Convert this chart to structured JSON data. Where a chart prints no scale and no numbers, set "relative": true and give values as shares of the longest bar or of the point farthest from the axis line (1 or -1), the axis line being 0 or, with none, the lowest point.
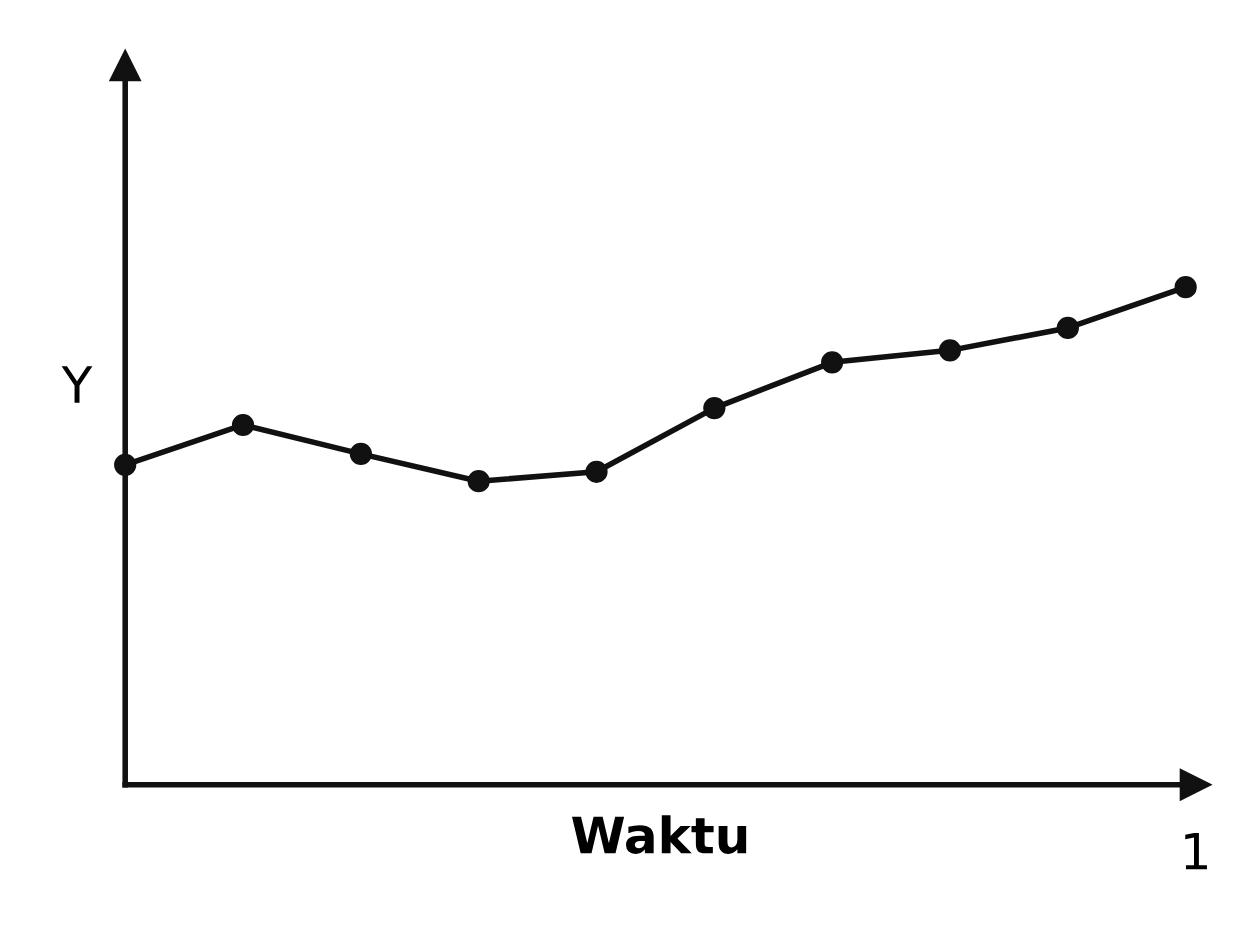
{
  "chart_data": {
    "type": "line",
    "relative": true,
    "xlabel": "Waktu",
    "ylabel": "Y",
    "categories": [
      null,
      null,
      null,
      null,
      null,
      null,
      null,
      null,
      null,
      null
    ],
    "series": [
      {
        "color": "#111111",
        "values": [
          0.643,
          0.723,
          0.665,
          0.61,
          0.629,
          0.757,
          0.849,
          0.873,
          0.918,
          1
        ]
      }
    ],
    "marker": "circle",
    "line_style": "solid",
    "annotations": [
      "1"
    ]
  }
}
